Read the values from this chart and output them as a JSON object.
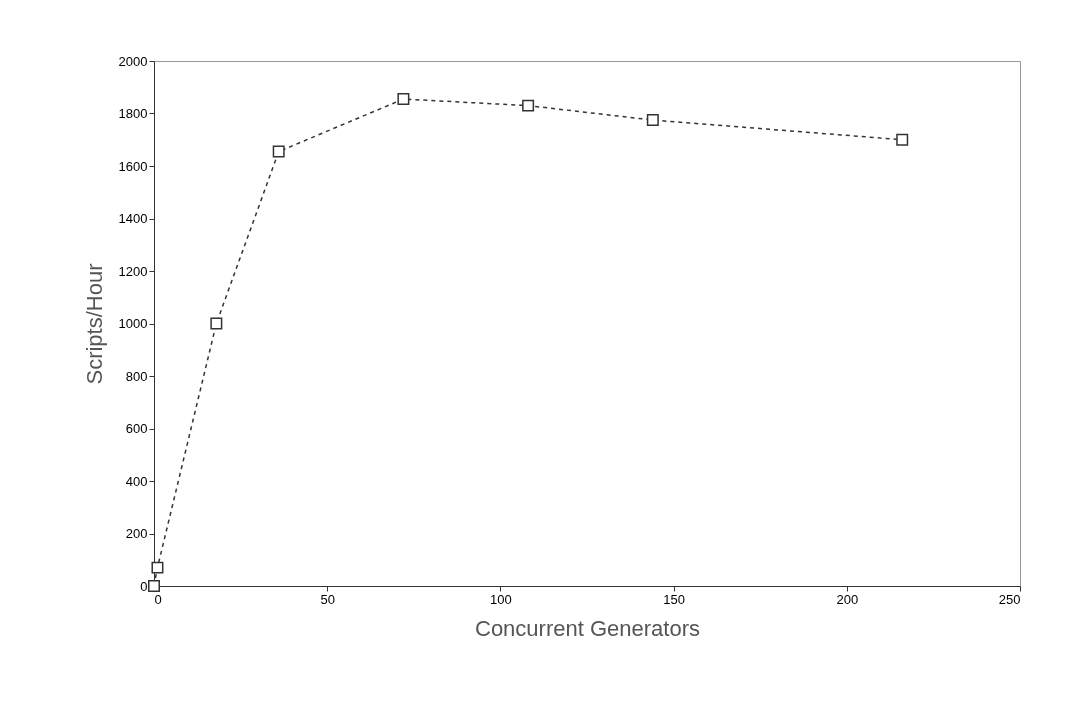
{
  "chart_data": {
    "type": "line",
    "xlabel": "Concurrent Generators",
    "ylabel": "Scripts/Hour",
    "x": [
      0,
      1,
      18,
      36,
      72,
      108,
      144,
      216
    ],
    "series": [
      {
        "color": "#333333",
        "values": [
          0,
          70,
          1000,
          1655,
          1855,
          1830,
          1775,
          1700
        ]
      }
    ],
    "xlim": [
      0,
      250
    ],
    "xticks": [
      0,
      50,
      100,
      150,
      200,
      250
    ],
    "ylim": [
      0,
      2000
    ],
    "yticks": [
      0,
      200,
      400,
      600,
      800,
      1000,
      1200,
      1400,
      1600,
      1800,
      2000
    ],
    "grid": false,
    "marker": "square",
    "line_style": "dashed"
  }
}
